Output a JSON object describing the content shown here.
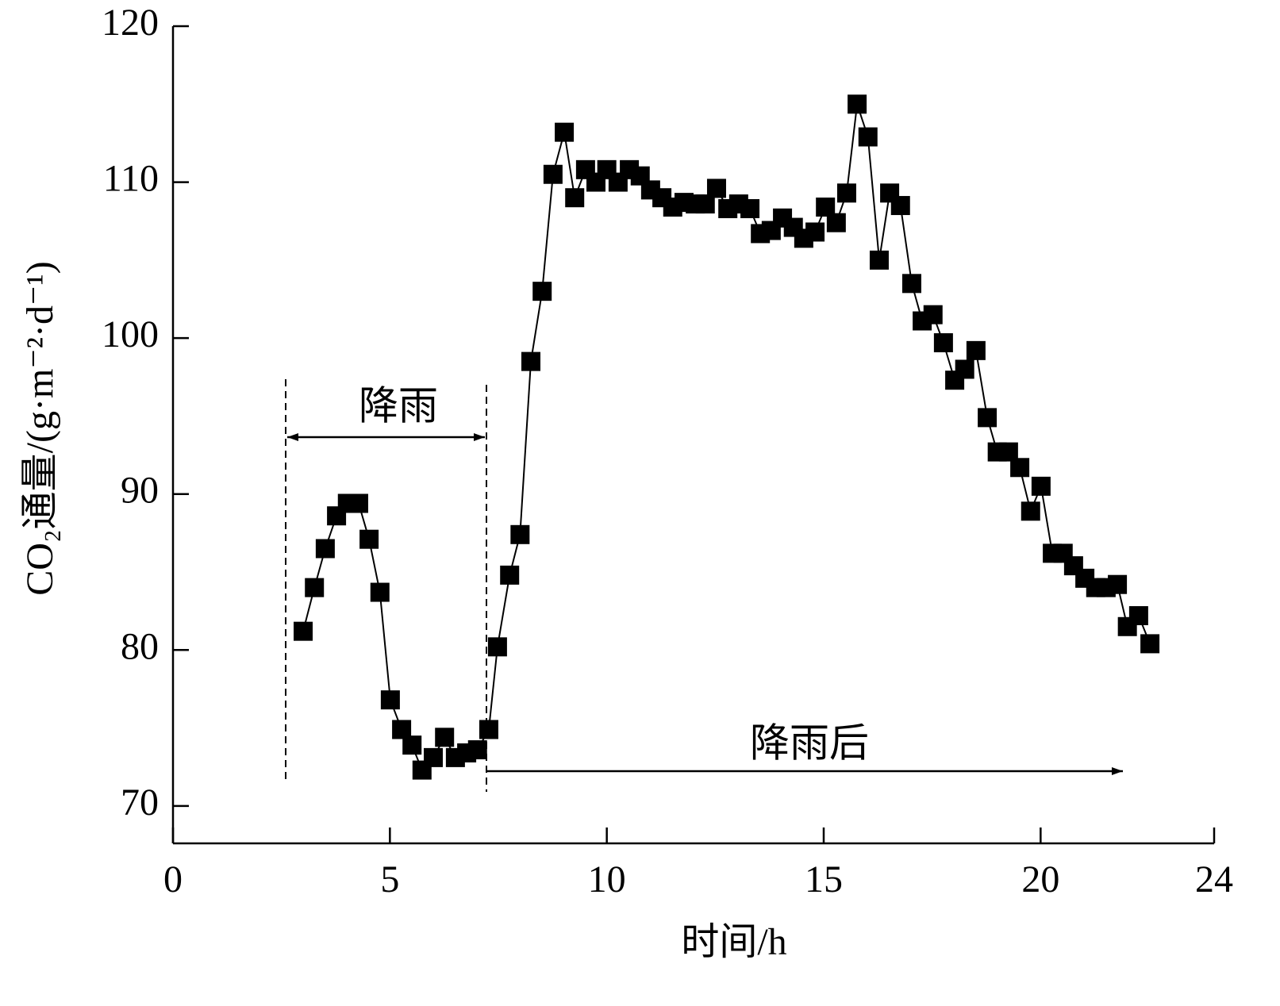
{
  "chart_data": {
    "type": "line",
    "x_label": "时间/h",
    "y_label": "CO₂通量/(g·m⁻²·d⁻¹)",
    "annotations": [
      "降雨",
      "降雨后"
    ],
    "xlim": [
      0,
      24
    ],
    "xticks": [
      0,
      5,
      10,
      15,
      20,
      24
    ],
    "ylim": [
      67.6,
      120
    ],
    "yticks": [
      70,
      80,
      90,
      100,
      110,
      120
    ],
    "series": [
      {
        "color": "#000000",
        "x": [
          3.0,
          3.26,
          3.51,
          3.77,
          4.02,
          4.28,
          4.52,
          4.77,
          5.01,
          5.27,
          5.51,
          5.74,
          6.0,
          6.26,
          6.51,
          6.77,
          7.02,
          7.28,
          7.48,
          7.76,
          8.0,
          8.25,
          8.51,
          8.76,
          9.02,
          9.26,
          9.51,
          9.75,
          10.0,
          10.26,
          10.52,
          10.77,
          11.01,
          11.27,
          11.52,
          11.78,
          12.04,
          12.27,
          12.53,
          12.79,
          13.04,
          13.3,
          13.54,
          13.79,
          14.05,
          14.3,
          14.54,
          14.8,
          15.04,
          15.29,
          15.53,
          15.77,
          16.02,
          16.28,
          16.52,
          16.77,
          17.03,
          17.27,
          17.52,
          17.76,
          18.02,
          18.25,
          18.51,
          18.77,
          19.0,
          19.26,
          19.52,
          19.77,
          20.01,
          20.27,
          20.52,
          20.76,
          21.02,
          21.27,
          21.51,
          21.77,
          22.0,
          22.26,
          22.52
        ],
        "values": [
          81.2,
          84.0,
          86.5,
          88.6,
          89.4,
          89.4,
          87.1,
          83.7,
          76.8,
          74.9,
          73.9,
          72.3,
          73.1,
          74.4,
          73.1,
          73.4,
          73.6,
          74.9,
          80.2,
          84.8,
          87.4,
          98.5,
          103.0,
          110.5,
          113.2,
          109.0,
          110.8,
          110.0,
          110.8,
          110.0,
          110.8,
          110.4,
          109.5,
          109.0,
          108.4,
          108.7,
          108.6,
          108.6,
          109.6,
          108.3,
          108.6,
          108.3,
          106.7,
          106.9,
          107.7,
          107.1,
          106.4,
          106.8,
          108.4,
          107.4,
          109.3,
          115.0,
          112.9,
          105.0,
          109.3,
          108.5,
          103.5,
          101.1,
          101.5,
          99.7,
          97.3,
          98.0,
          99.2,
          94.9,
          92.7,
          92.7,
          91.7,
          88.9,
          90.5,
          86.2,
          86.2,
          85.4,
          84.6,
          84.0,
          84.0,
          84.2,
          81.5,
          82.2,
          80.4
        ]
      }
    ]
  }
}
